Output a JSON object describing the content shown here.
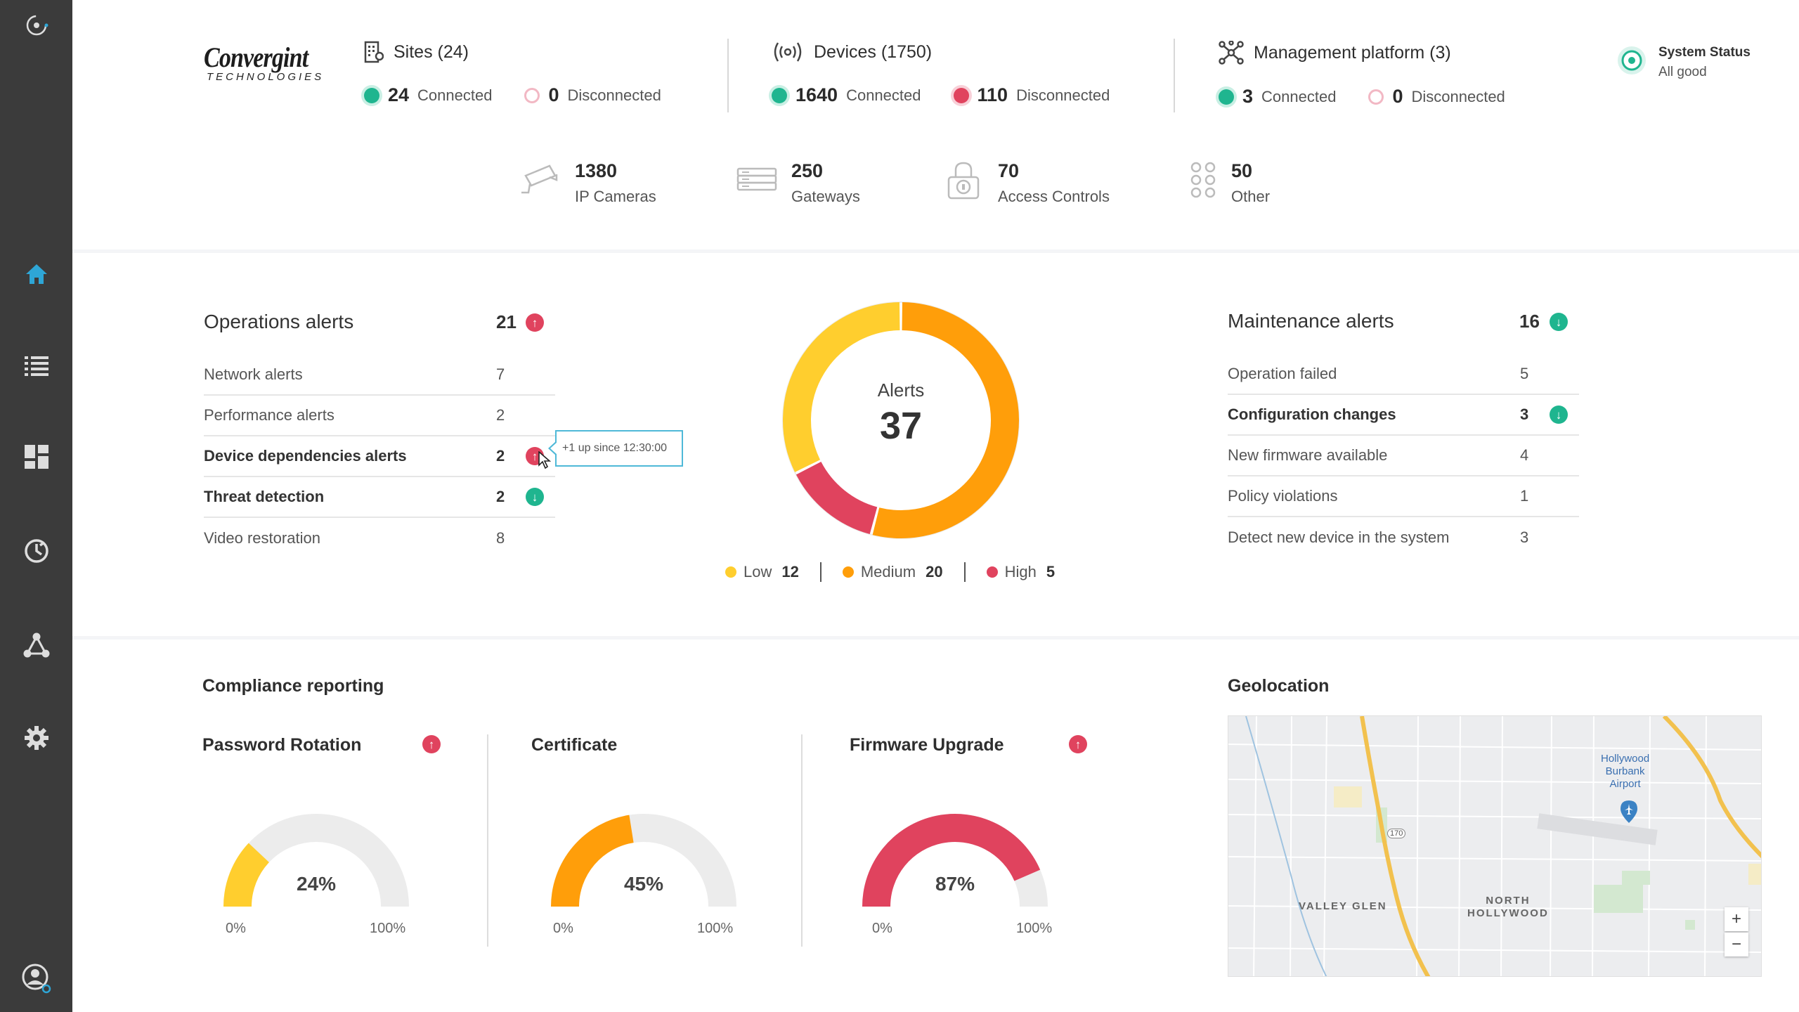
{
  "header": {
    "logo_line1": "Convergint",
    "logo_line2": "TECHNOLOGIES",
    "sites": {
      "title": "Sites (24)",
      "connected_count": "24",
      "connected_label": "Connected",
      "disconnected_count": "0",
      "disconnected_label": "Disconnected"
    },
    "devices": {
      "title": "Devices (1750)",
      "connected_count": "1640",
      "connected_label": "Connected",
      "disconnected_count": "110",
      "disconnected_label": "Disconnected"
    },
    "platform": {
      "title": "Management platform (3)",
      "connected_count": "3",
      "connected_label": "Connected",
      "disconnected_count": "0",
      "disconnected_label": "Disconnected"
    },
    "status": {
      "title": "System Status",
      "value": "All good"
    },
    "device_types": [
      {
        "count": "1380",
        "label": "IP Cameras",
        "icon": "camera-icon"
      },
      {
        "count": "250",
        "label": "Gateways",
        "icon": "gateway-icon"
      },
      {
        "count": "70",
        "label": "Access Controls",
        "icon": "lock-icon"
      },
      {
        "count": "50",
        "label": "Other",
        "icon": "grid-dots-icon"
      }
    ]
  },
  "operations": {
    "title": "Operations alerts",
    "count": "21",
    "trend": "up",
    "items": [
      {
        "label": "Network alerts",
        "value": "7",
        "bold": false
      },
      {
        "label": "Performance alerts",
        "value": "2",
        "bold": false
      },
      {
        "label": "Device dependencies alerts",
        "value": "2",
        "bold": true,
        "trend": "up"
      },
      {
        "label": "Threat detection",
        "value": "2",
        "bold": true,
        "trend": "down"
      },
      {
        "label": "Video restoration",
        "value": "8",
        "bold": false
      }
    ],
    "tooltip": "+1 up since 12:30:00"
  },
  "donut": {
    "label": "Alerts",
    "total": "37",
    "legend": [
      {
        "name": "Low",
        "value": "12",
        "color": "#ffce2e"
      },
      {
        "name": "Medium",
        "value": "20",
        "color": "#ff9e0a"
      },
      {
        "name": "High",
        "value": "5",
        "color": "#e0435e"
      }
    ]
  },
  "chart_data": {
    "type": "pie",
    "categories": [
      "Low",
      "Medium",
      "High"
    ],
    "values": [
      12,
      20,
      5
    ],
    "title": "Alerts",
    "total": 37
  },
  "maintenance": {
    "title": "Maintenance alerts",
    "count": "16",
    "trend": "down",
    "items": [
      {
        "label": "Operation failed",
        "value": "5",
        "bold": false
      },
      {
        "label": "Configuration changes",
        "value": "3",
        "bold": true,
        "trend": "down"
      },
      {
        "label": "New firmware available",
        "value": "4",
        "bold": false
      },
      {
        "label": "Policy violations",
        "value": "1",
        "bold": false
      },
      {
        "label": "Detect new device in the system",
        "value": "3",
        "bold": false
      }
    ]
  },
  "compliance": {
    "title": "Compliance reporting",
    "gauges": [
      {
        "title": "Password Rotation",
        "value": 24,
        "value_label": "24%",
        "color": "#ffce2e",
        "trend": "up",
        "min": "0%",
        "max": "100%"
      },
      {
        "title": "Certificate",
        "value": 45,
        "value_label": "45%",
        "color": "#ff9e0a",
        "trend": "",
        "min": "0%",
        "max": "100%"
      },
      {
        "title": "Firmware Upgrade",
        "value": 87,
        "value_label": "87%",
        "color": "#e0435e",
        "trend": "up",
        "min": "0%",
        "max": "100%"
      }
    ]
  },
  "geolocation": {
    "title": "Geolocation",
    "labels": [
      "Hollywood",
      "Burbank",
      "Airport",
      "VALLEY GLEN",
      "NORTH",
      "HOLLYWOOD",
      "170"
    ],
    "zoom_in": "+",
    "zoom_out": "−"
  },
  "colors": {
    "accent": "#2ea6d6",
    "green": "#1fb58f",
    "red": "#e0435e",
    "sidebar": "#3b3b3b"
  }
}
